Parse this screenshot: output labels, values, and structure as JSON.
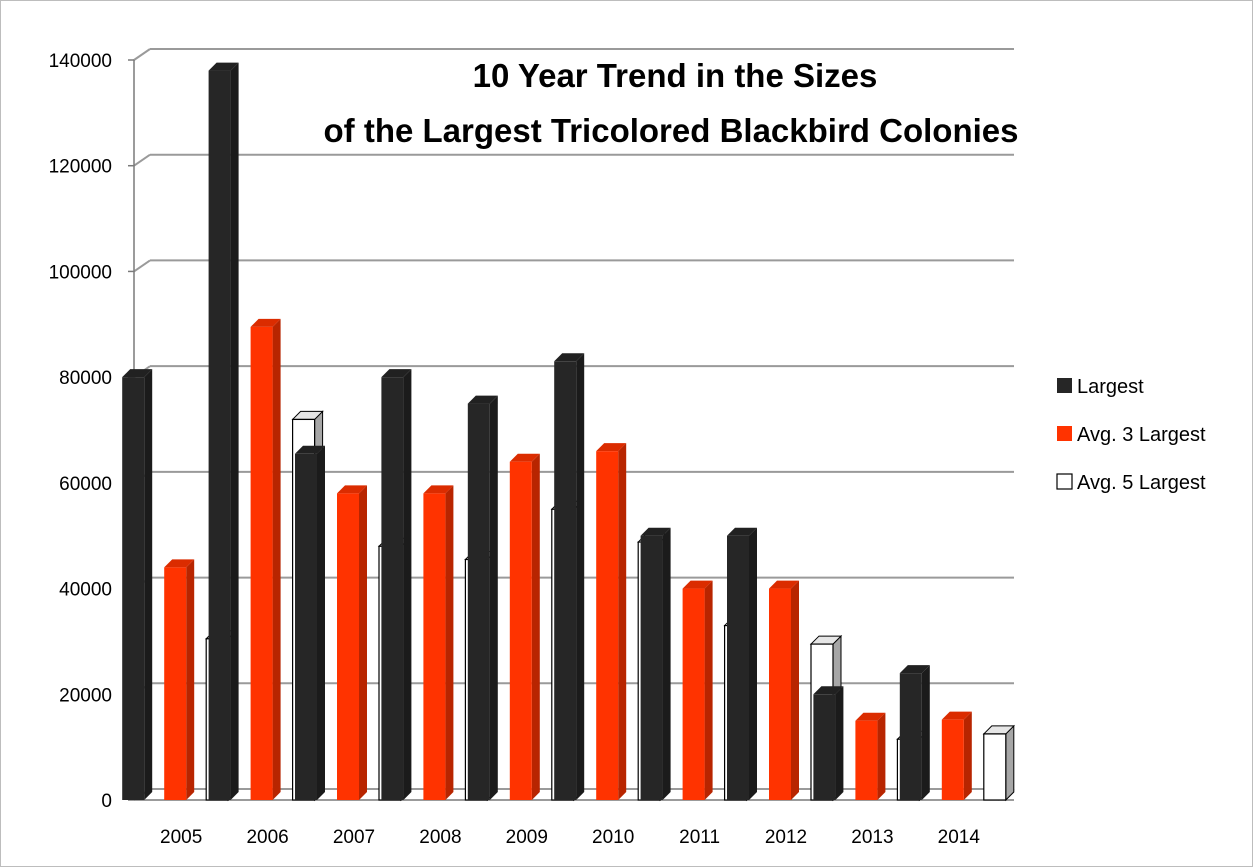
{
  "chart_data": {
    "type": "bar",
    "title_lines": [
      "10 Year Trend in the Sizes",
      "of the Largest Tricolored Blackbird Colonies"
    ],
    "xlabel": "",
    "ylabel": "",
    "categories": [
      "2005",
      "2006",
      "2007",
      "2008",
      "2009",
      "2010",
      "2011",
      "2012",
      "2013",
      "2014"
    ],
    "ylim": [
      0,
      140000
    ],
    "yticks": [
      0,
      20000,
      40000,
      60000,
      80000,
      100000,
      120000,
      140000
    ],
    "ytick_labels": [
      "0",
      "20000",
      "40000",
      "60000",
      "80000",
      "100000",
      "120000",
      "140000"
    ],
    "grid": true,
    "legend_position": "right",
    "series": [
      {
        "name": "Largest",
        "color": "#262626",
        "values": [
          80000,
          138000,
          65500,
          80000,
          75000,
          83000,
          50000,
          50000,
          20000,
          24000
        ]
      },
      {
        "name": "Avg. 3 Largest",
        "color": "#ff3300",
        "values": [
          44000,
          89500,
          58000,
          58000,
          64000,
          66000,
          40000,
          40000,
          15000,
          15200
        ]
      },
      {
        "name": "Avg. 5 Largest",
        "color": "#ffffff",
        "values": [
          30500,
          72000,
          48000,
          45500,
          55000,
          48800,
          33000,
          29500,
          11500,
          12500
        ]
      }
    ]
  }
}
